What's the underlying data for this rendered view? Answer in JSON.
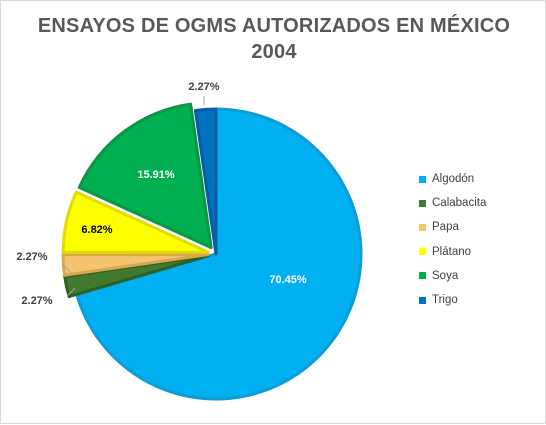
{
  "chart_data": {
    "type": "pie",
    "title": [
      "ENSAYOS DE OGMS AUTORIZADOS EN MÉXICO",
      "2004"
    ],
    "categories": [
      "Algodón",
      "Calabacita",
      "Papa",
      "Plátano",
      "Soya",
      "Trigo"
    ],
    "values": [
      70.45,
      2.27,
      2.27,
      6.82,
      15.91,
      2.27
    ],
    "data_labels": [
      "70.45%",
      "2.27%",
      "2.27%",
      "6.82%",
      "15.91%",
      "2.27%"
    ],
    "colors": [
      "#00b0f0",
      "#3f7a30",
      "#f5c46e",
      "#ffff00",
      "#00b050",
      "#0070c0"
    ],
    "border_colors": [
      "#0c9cd6",
      "#2f5f23",
      "#d9a652",
      "#dede00",
      "#0a9643",
      "#0a5da3"
    ],
    "label_colors": [
      "#ffffff",
      "#404040",
      "#404040",
      "#000000",
      "#ffffff",
      "#404040"
    ],
    "exploded": [
      false,
      true,
      true,
      true,
      true,
      false
    ],
    "legend_position": "right"
  }
}
